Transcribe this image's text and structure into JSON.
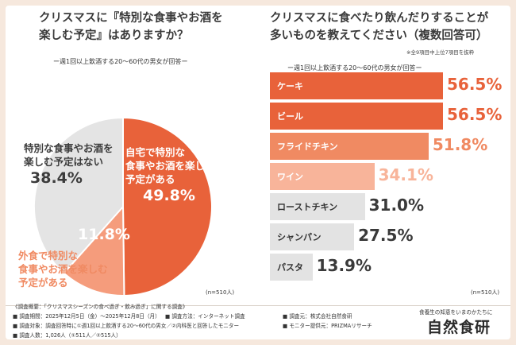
{
  "left_chart": {
    "title_line1": "クリスマスに『特別な食事やお酒を",
    "title_line2": "楽しむ予定』はありますか？",
    "subtitle": "ー週1回以上飲酒する20〜60代の男女が回答ー",
    "n_label": "(n=510人)"
  },
  "right_chart": {
    "title_line1": "クリスマスに食べたり飲んだりすることが",
    "title_line2": "多いものを教えてください（複数回答可）",
    "note": "※全9項目中上位7項目を抜粋",
    "subtitle": "ー週1回以上飲酒する20〜60代の男女が回答ー",
    "n_label": "(n=510人)"
  },
  "chart_data": [
    {
      "type": "pie",
      "slices": [
        {
          "label": "自宅で特別な食事やお酒を楽しむ予定がある",
          "label_lines": [
            "自宅で特別な",
            "食事やお酒を楽しむ",
            "予定がある"
          ],
          "value": 49.8,
          "value_text": "49.8%",
          "color": "#e8623a"
        },
        {
          "label": "外食で特別な食事やお酒を楽しむ予定がある",
          "label_lines": [
            "外食で特別な",
            "食事やお酒を楽しむ",
            "予定がある"
          ],
          "value": 11.8,
          "value_text": "11.8%",
          "color": "#f59c7c"
        },
        {
          "label": "特別な食事やお酒を楽しむ予定はない",
          "label_lines": [
            "特別な食事やお酒を",
            "楽しむ予定はない"
          ],
          "value": 38.4,
          "value_text": "38.4%",
          "color": "#e4e4e4"
        }
      ]
    },
    {
      "type": "bar",
      "orientation": "horizontal",
      "categories": [
        "ケーキ",
        "ビール",
        "フライドチキン",
        "ワイン",
        "ローストチキン",
        "シャンパン",
        "パスタ"
      ],
      "values": [
        56.5,
        56.5,
        51.8,
        34.1,
        31.0,
        27.5,
        13.9
      ],
      "value_texts": [
        "56.5%",
        "56.5%",
        "51.8%",
        "34.1%",
        "31.0%",
        "27.5%",
        "13.9%"
      ],
      "bar_colors": [
        "#e8623a",
        "#e8623a",
        "#f08a62",
        "#f8b49a",
        "#e3e3e3",
        "#e3e3e3",
        "#e3e3e3"
      ],
      "label_colors": [
        "#ffffff",
        "#ffffff",
        "#ffffff",
        "#ffffff",
        "#333333",
        "#333333",
        "#333333"
      ],
      "value_colors": [
        "#e8623a",
        "#e8623a",
        "#f08a62",
        "#f8b49a",
        "#3a3a3a",
        "#3a3a3a",
        "#3a3a3a"
      ],
      "xlim": [
        0,
        60
      ]
    }
  ],
  "footer": {
    "line1": "《調査概要：「クリスマスシーズンの食べ過ぎ・飲み過ぎ」に関する調査》",
    "period": "■ 調査期間：2025年12月5日（金）〜2025年12月8日（月）",
    "method": "■ 調査方法：インターネット調査",
    "source": "■ 調査元：株式会社自然食研",
    "target": "■ 調査対象：調査回答時に①週1回以上飲酒する20〜60代の男女／②内科医と回答したモニター",
    "provider": "■ モニター提供元：PRIZMAリサーチ",
    "people": "■ 調査人数：1,026人（①511人／②515人）"
  },
  "brand": {
    "tagline": "食養生の知恵をいまのかたちに",
    "name": "自然食研"
  }
}
